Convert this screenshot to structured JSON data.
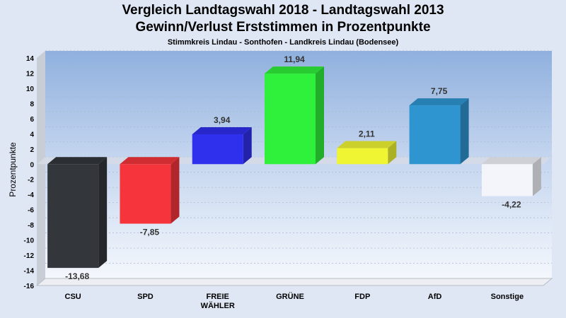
{
  "chart_data": {
    "type": "bar",
    "title": "Vergleich Landtagswahl 2018 - Landtagswahl 2013",
    "subtitle": "Gewinn/Verlust Erststimmen in Prozentpunkte",
    "caption": "Stimmkreis Lindau - Sonthofen - Landkreis Lindau (Bodensee)",
    "ylabel": "Prozentpunkte",
    "xlabel": "",
    "ylim": [
      -16,
      14
    ],
    "yticks": [
      14,
      12,
      10,
      8,
      6,
      4,
      2,
      0,
      -2,
      -4,
      -6,
      -8,
      -10,
      -12,
      -14,
      -16
    ],
    "grid": true,
    "categories": [
      [
        "CSU"
      ],
      [
        "SPD"
      ],
      [
        "FREIE",
        "WÄHLER"
      ],
      [
        "GRÜNE"
      ],
      [
        "FDP"
      ],
      [
        "AfD"
      ],
      [
        "Sonstige"
      ]
    ],
    "values": [
      -13.68,
      -7.85,
      3.94,
      11.94,
      2.11,
      7.75,
      -4.22
    ],
    "value_labels": [
      "-13,68",
      "-7,85",
      "3,94",
      "11,94",
      "2,11",
      "7,75",
      "-4,22"
    ],
    "colors": [
      "#33363b",
      "#f5353b",
      "#2f2fee",
      "#2ff03a",
      "#eff533",
      "#2f95d1",
      "#f3f5fa"
    ]
  }
}
